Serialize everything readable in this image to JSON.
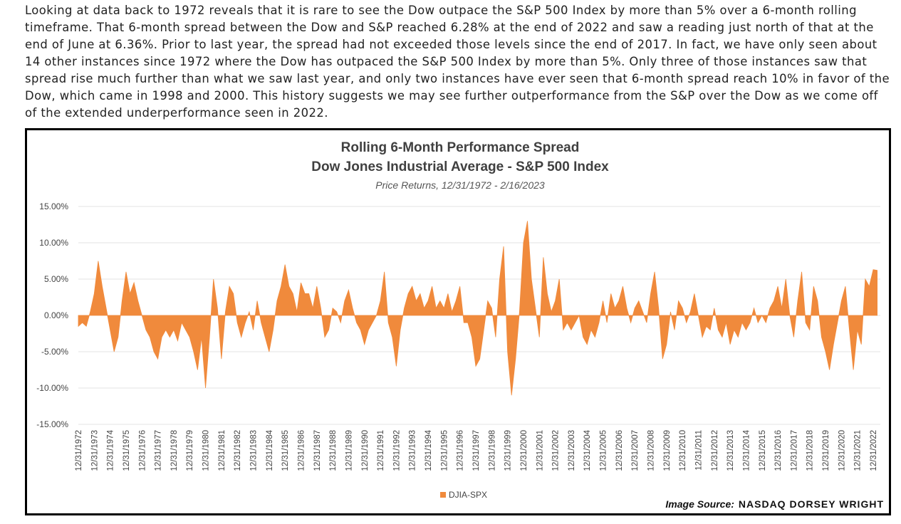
{
  "paragraph": "Looking at data back to 1972 reveals that it is rare to see the Dow outpace the S&P 500 Index by more than 5% over a 6-month rolling timeframe. That 6-month spread between the Dow and S&P reached 6.28% at the end of 2022 and saw a reading just north of that at the end of June at 6.36%. Prior to last year, the spread had not exceeded those levels since the end of 2017. In fact, we have only seen about 14 other instances since 1972 where the Dow has outpaced the S&P 500 Index by more than 5%. Only three of those instances saw that spread rise much further than what we saw last year, and only two instances have ever seen that 6-month spread reach 10% in favor of the Dow, which came in 1998 and 2000. This history suggests we may see further outperformance from the S&P over the Dow as we come off of the extended underperformance seen in 2022.",
  "source_label": "Image Source:",
  "source_name": "NASDAQ DORSEY WRIGHT",
  "chart_data": {
    "type": "area",
    "title": "Rolling 6-Month Performance Spread",
    "subtitle": "Dow Jones Industrial Average - S&P 500 Index",
    "note": "Price Returns, 12/31/1972 - 2/16/2023",
    "ylim": [
      -15,
      15
    ],
    "yticks": [
      {
        "value": 15,
        "label": "15.00%"
      },
      {
        "value": 10,
        "label": "10.00%"
      },
      {
        "value": 5,
        "label": "5.00%"
      },
      {
        "value": 0,
        "label": "0.00%"
      },
      {
        "value": -5,
        "label": "-5.00%"
      },
      {
        "value": -10,
        "label": "-10.00%"
      },
      {
        "value": -15,
        "label": "-15.00%"
      }
    ],
    "grid": true,
    "legend": "bottom",
    "categories": [
      "12/31/1972",
      null,
      null,
      null,
      "12/31/1973",
      null,
      null,
      null,
      "12/31/1974",
      null,
      null,
      null,
      "12/31/1975",
      null,
      null,
      null,
      "12/31/1976",
      null,
      null,
      null,
      "12/31/1977",
      null,
      null,
      null,
      "12/31/1978",
      null,
      null,
      null,
      "12/31/1979",
      null,
      null,
      null,
      "12/31/1980",
      null,
      null,
      null,
      "12/31/1981",
      null,
      null,
      null,
      "12/31/1982",
      null,
      null,
      null,
      "12/31/1983",
      null,
      null,
      null,
      "12/31/1984",
      null,
      null,
      null,
      "12/31/1985",
      null,
      null,
      null,
      "12/31/1986",
      null,
      null,
      null,
      "12/31/1987",
      null,
      null,
      null,
      "12/31/1988",
      null,
      null,
      null,
      "12/31/1989",
      null,
      null,
      null,
      "12/31/1990",
      null,
      null,
      null,
      "12/31/1991",
      null,
      null,
      null,
      "12/31/1992",
      null,
      null,
      null,
      "12/31/1993",
      null,
      null,
      null,
      "12/31/1994",
      null,
      null,
      null,
      "12/31/1995",
      null,
      null,
      null,
      "12/31/1996",
      null,
      null,
      null,
      "12/31/1997",
      null,
      null,
      null,
      "12/31/1998",
      null,
      null,
      null,
      "12/31/1999",
      null,
      null,
      null,
      "12/31/2000",
      null,
      null,
      null,
      "12/31/2001",
      null,
      null,
      null,
      "12/31/2002",
      null,
      null,
      null,
      "12/31/2003",
      null,
      null,
      null,
      "12/31/2004",
      null,
      null,
      null,
      "12/31/2005",
      null,
      null,
      null,
      "12/31/2006",
      null,
      null,
      null,
      "12/31/2007",
      null,
      null,
      null,
      "12/31/2008",
      null,
      null,
      null,
      "12/31/2009",
      null,
      null,
      null,
      "12/31/2010",
      null,
      null,
      null,
      "12/31/2011",
      null,
      null,
      null,
      "12/31/2012",
      null,
      null,
      null,
      "12/31/2013",
      null,
      null,
      null,
      "12/31/2014",
      null,
      null,
      null,
      "12/31/2015",
      null,
      null,
      null,
      "12/31/2016",
      null,
      null,
      null,
      "12/31/2017",
      null,
      null,
      null,
      "12/31/2018",
      null,
      null,
      null,
      "12/31/2019",
      null,
      null,
      null,
      "12/31/2020",
      null,
      null,
      null,
      "12/31/2021",
      null,
      null,
      null,
      "12/31/2022",
      null
    ],
    "series": [
      {
        "name": "DJIA-SPX",
        "color": "#f08a3c",
        "values": [
          -1.5,
          -1,
          -1.5,
          0.5,
          3,
          7.5,
          4,
          1,
          -2,
          -5,
          -3,
          2,
          6,
          3,
          4.5,
          2,
          0,
          -2,
          -3,
          -5,
          -6,
          -3,
          -2,
          -3,
          -2,
          -3.5,
          -1,
          -2,
          -3,
          -5,
          -7.5,
          -3,
          -10,
          -3,
          5,
          1,
          -6,
          0.5,
          4,
          3,
          -1,
          -3,
          -1,
          0.5,
          -2,
          2,
          -1,
          -3,
          -5,
          -2,
          2,
          4,
          7,
          4,
          3,
          0.5,
          4.5,
          3,
          3,
          1,
          4,
          1,
          -3,
          -2,
          1,
          0.5,
          -1,
          2,
          3.5,
          1,
          -1,
          -2,
          -4,
          -2,
          -1,
          0,
          2,
          6,
          -1,
          -3,
          -7,
          -2,
          1,
          3,
          4,
          2,
          3,
          1,
          2,
          4,
          1,
          2,
          1,
          3,
          0.5,
          2,
          4,
          -1,
          -1,
          -3,
          -7,
          -6,
          -2,
          2,
          1,
          -3,
          5,
          9.5,
          -5,
          -11,
          -6,
          0.5,
          10,
          13,
          5,
          1,
          -3,
          8,
          3,
          0.5,
          2,
          5,
          -2,
          -1,
          -2,
          -1,
          0,
          -3,
          -4,
          -2,
          -3,
          -1,
          2,
          -1,
          3,
          1,
          2,
          4,
          1,
          -1,
          1,
          2,
          0.5,
          -1,
          3,
          6,
          1,
          -6,
          -4,
          0.5,
          -2,
          2,
          1,
          -1,
          0.5,
          3,
          0,
          -3,
          -1.5,
          -2,
          1,
          -2,
          -3,
          -1,
          -4,
          -2,
          -3,
          -1,
          -2,
          -1,
          1,
          -1,
          0,
          -1,
          1,
          2,
          4,
          1,
          5,
          0,
          -3,
          2,
          6,
          -1,
          -2,
          4,
          2,
          -3,
          -5,
          -7.5,
          -4,
          -1,
          2,
          4,
          -2,
          -7.5,
          -2,
          -4,
          5,
          4,
          6.3,
          6.2
        ]
      }
    ]
  }
}
